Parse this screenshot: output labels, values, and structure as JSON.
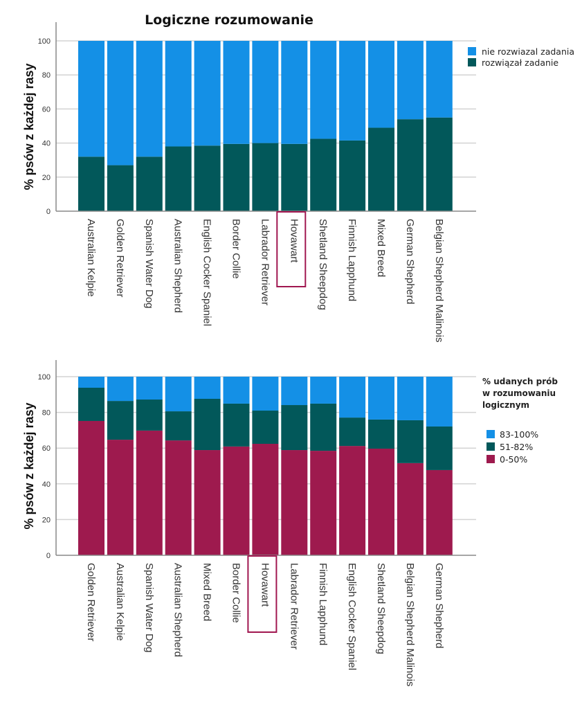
{
  "colors": {
    "light_blue": "#1490e6",
    "teal": "#02585a",
    "maroon": "#9e1a4e",
    "highlight_box": "#a0164f",
    "gridline": "#d3d3d3",
    "axis": "#888888"
  },
  "chart_data": [
    {
      "type": "bar",
      "stacked": true,
      "title": "Logiczne rozumowanie",
      "xlabel": "",
      "ylabel": "% psów z każdej rasy",
      "ylim": [
        0,
        100
      ],
      "yticks": [
        "0",
        "20",
        "40",
        "60",
        "80",
        "100"
      ],
      "grid": true,
      "legend_position": "top-right",
      "highlighted_category": "Hovawart",
      "categories": [
        "Australian Kelpie",
        "Golden Retriever",
        "Spanish Water Dog",
        "Australian Shepherd",
        "English Cocker Spaniel",
        "Border Collie",
        "Labrador Retriever",
        "Hovawart",
        "Shetland Sheepdog",
        "Finnish Lapphund",
        "Mixed Breed",
        "German Shepherd",
        "Belgian Shepherd Malinois"
      ],
      "series": [
        {
          "name": "rozwiązał zadanie",
          "color": "#02585a",
          "values": [
            32,
            27,
            32,
            38,
            38.5,
            39.5,
            40,
            39.5,
            42.5,
            41.5,
            49,
            54,
            55
          ]
        },
        {
          "name": "nie rozwiazal zadania",
          "color": "#1490e6",
          "values": [
            68,
            73,
            68,
            62,
            61.5,
            60.5,
            60,
            60.5,
            57.5,
            58.5,
            51,
            46,
            45
          ]
        }
      ],
      "legend": [
        {
          "label": "nie rozwiazal zadania",
          "color": "#1490e6"
        },
        {
          "label": "rozwiązał zadanie",
          "color": "#02585a"
        }
      ]
    },
    {
      "type": "bar",
      "stacked": true,
      "title": "",
      "xlabel": "",
      "ylabel": "% psów z każdej rasy",
      "ylim": [
        0,
        100
      ],
      "yticks": [
        "0",
        "20",
        "40",
        "60",
        "80",
        "100"
      ],
      "grid": true,
      "legend_position": "top-right",
      "legend_title": [
        "% udanych prób",
        "w rozumowaniu",
        "logicznym"
      ],
      "highlighted_category": "Hovawart",
      "categories": [
        "Golden Retriever",
        "Australian Kelpie",
        "Spanish Water Dog",
        "Australian Shepherd",
        "Mixed Breed",
        "Border Collie",
        "Hovawart",
        "Labrador Retriever",
        "Finnish Lapphund",
        "English Cocker Spaniel",
        "Shetland Sheepdog",
        "Belgian Shepherd Malinois",
        "German Shepherd"
      ],
      "series": [
        {
          "name": "0-50%",
          "color": "#9e1a4e",
          "values": [
            75.2,
            64.7,
            69.8,
            64.3,
            58.9,
            60.9,
            62.4,
            58.9,
            58.5,
            61.2,
            59.7,
            51.6,
            47.7
          ]
        },
        {
          "name": "51-82%",
          "color": "#02585a",
          "values": [
            18.6,
            21.7,
            17.4,
            16.3,
            28.7,
            24.0,
            18.6,
            25.2,
            26.4,
            15.9,
            16.3,
            24.0,
            24.4
          ]
        },
        {
          "name": "83-100%",
          "color": "#1490e6",
          "values": [
            6.2,
            13.6,
            12.8,
            19.4,
            12.4,
            15.1,
            19.0,
            15.9,
            15.1,
            22.9,
            24.0,
            24.4,
            27.9
          ]
        }
      ],
      "legend": [
        {
          "label": "83-100%",
          "color": "#1490e6"
        },
        {
          "label": "51-82%",
          "color": "#02585a"
        },
        {
          "label": "0-50%",
          "color": "#9e1a4e"
        }
      ]
    }
  ]
}
